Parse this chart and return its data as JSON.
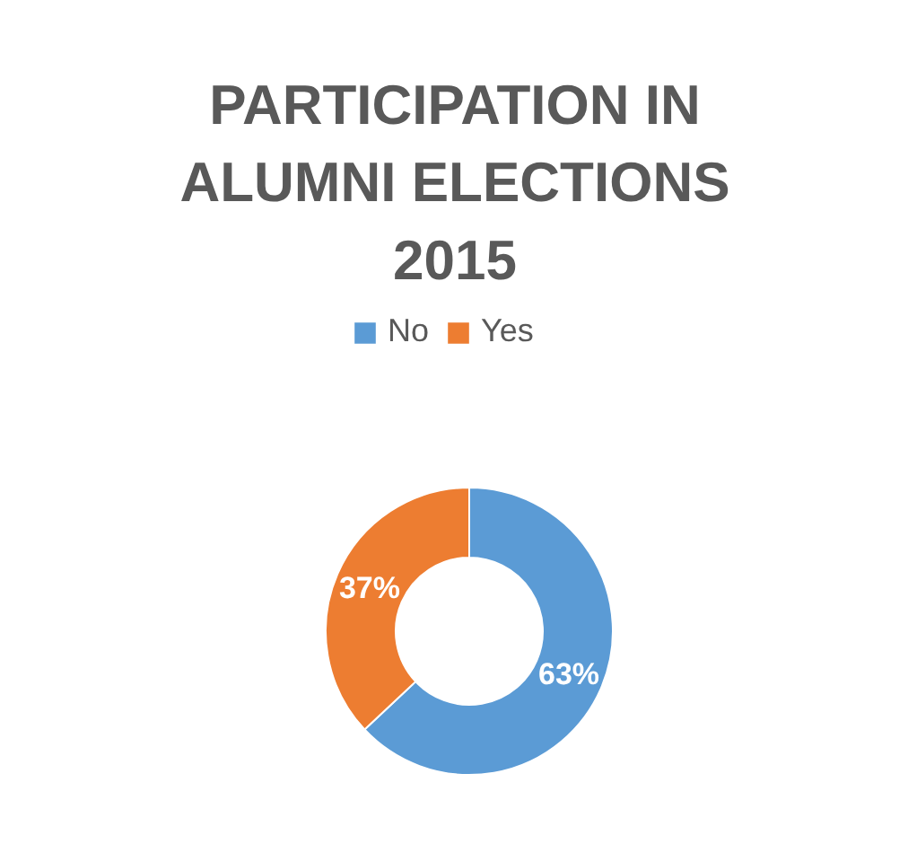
{
  "chart_data": {
    "type": "donut",
    "title": "PARTICIPATION IN ALUMNI ELECTIONS 2015",
    "categories": [
      "No",
      "Yes"
    ],
    "values": [
      63,
      37
    ],
    "colors": [
      "#5b9bd5",
      "#ed7d31"
    ],
    "value_labels": [
      "63%",
      "37%"
    ],
    "legend": "top"
  }
}
